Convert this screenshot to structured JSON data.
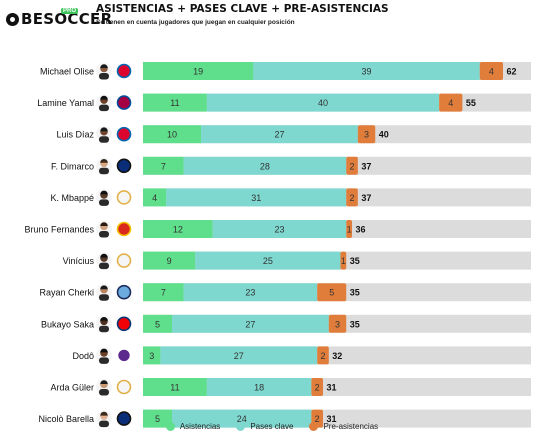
{
  "brand": {
    "name": "BESOCCER",
    "badge": "PRO"
  },
  "header": {
    "title": "ASISTENCIAS + PASES CLAVE + PRE-ASISTENCIAS",
    "subtitle": "Se tienen en cuenta jugadores que juegan en cualquier posición"
  },
  "colors": {
    "asistencias": "#5fdf8c",
    "pases_clave": "#7ed8cf",
    "pre_asistencias": "#e07d3a",
    "track": "#dcdcdc"
  },
  "legend": [
    "Asistencias",
    "Pases clave",
    "Pre-asistencias"
  ],
  "chart_data": {
    "type": "bar",
    "orientation": "horizontal",
    "stacked": true,
    "categories": [
      "Michael Olise",
      "Lamine Yamal",
      "Luis Díaz",
      "F. Dimarco",
      "K. Mbappé",
      "Bruno Fernandes",
      "Vinícius",
      "Rayan Cherki",
      "Bukayo Saka",
      "Dodô",
      "Arda Güler",
      "Nicolò Barella"
    ],
    "series": [
      {
        "name": "Asistencias",
        "values": [
          19,
          11,
          10,
          7,
          4,
          12,
          9,
          7,
          5,
          3,
          11,
          5
        ]
      },
      {
        "name": "Pases clave",
        "values": [
          39,
          40,
          27,
          28,
          31,
          23,
          25,
          23,
          27,
          27,
          18,
          24
        ]
      },
      {
        "name": "Pre-asistencias",
        "values": [
          4,
          4,
          3,
          2,
          2,
          1,
          1,
          5,
          3,
          2,
          2,
          2
        ]
      }
    ],
    "totals": [
      62,
      55,
      40,
      37,
      37,
      36,
      35,
      35,
      35,
      32,
      31,
      31
    ],
    "club_icons": [
      "bayern-icon",
      "barcelona-icon",
      "bayern-icon",
      "inter-icon",
      "real-madrid-icon",
      "man-united-icon",
      "real-madrid-icon",
      "man-city-icon",
      "arsenal-icon",
      "fiorentina-icon",
      "real-madrid-icon",
      "inter-icon"
    ],
    "xlim": [
      0,
      62
    ],
    "legend_position": "bottom-center",
    "grid": false
  }
}
